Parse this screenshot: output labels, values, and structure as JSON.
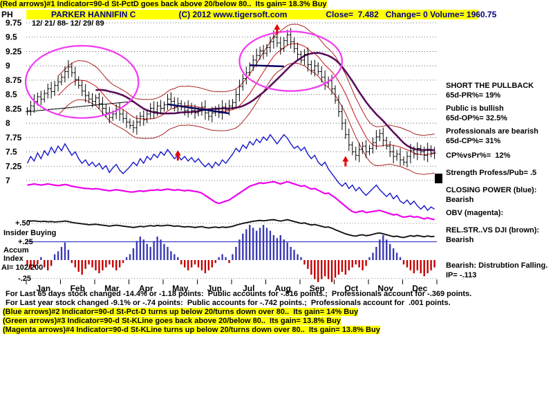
{
  "header": {
    "line1": "(Red arrows)#1 Indicator=90-d St-PctD goes back above 20/below 80..  Its gain= 18.3% Buy",
    "ticker": "PH",
    "title": "PARKER HANNIFIN C",
    "copyright": "(C) 2012 www.tigersoft.com",
    "quote": "Close=  7.482   Change= 0 Volume= 1960.75",
    "date_range": "12/ 21/ 88- 12/ 29/ 89"
  },
  "left_labels": {
    "plus50": "+.50",
    "insider_line1": "Insider Buying",
    "plus25": "+.25",
    "insider_line2": "Accum",
    "insider_line3": "Index",
    "ai": "AI= 102/200",
    "minus25": "-.25"
  },
  "right_panel": {
    "lines": [
      {
        "text": "SHORT THE PULLBACK",
        "bold": true,
        "mt": 0
      },
      {
        "text": "65d-PR%= 19%",
        "bold": false,
        "mt": 1
      },
      {
        "text": "Public is bullish",
        "bold": false,
        "mt": 6
      },
      {
        "text": "65d-OP%= 32.5%",
        "bold": false,
        "mt": 1
      },
      {
        "text": "Professionals are bearish",
        "bold": false,
        "mt": 6
      },
      {
        "text": "65d-CP%= 31%",
        "bold": false,
        "mt": 1
      },
      {
        "text": "CP%vsPr%=  12%",
        "bold": false,
        "mt": 8
      },
      {
        "text": "Strength Profess/Pub= .5",
        "bold": false,
        "mt": 12
      },
      {
        "text": "CLOSING POWER (blue):",
        "bold": true,
        "mt": 12
      },
      {
        "text": "Bearish",
        "bold": false,
        "mt": 1
      },
      {
        "text": "OBV (magenta):",
        "bold": true,
        "mt": 6
      },
      {
        "text": "REL.STR..VS DJI (brown):",
        "bold": true,
        "mt": 12
      },
      {
        "text": "Bearish",
        "bold": false,
        "mt": 1
      },
      {
        "text": "Bearish: Distrubtion Falling.",
        "bold": false,
        "mt": 24
      },
      {
        "text": "IP= -.113",
        "bold": false,
        "mt": 1
      }
    ]
  },
  "footer": {
    "lines": [
      {
        "text": "For Last 65 days stock changed -14.4% or -1.18 points:  Public accounts for -.816 points.;  Professionals account for -.369 points.",
        "highlight": false
      },
      {
        "text": "For Last year stock changed -9.1% or -.74 points:  Public accounts for -.742 points.;  Professionals account for  .001 points.",
        "highlight": false
      },
      {
        "text": "(Blue arrows)#2 Indicator=90-d St-Pct-D turns up below 20/turns down over 80..  Its gain= 14% Buy",
        "highlight": true
      },
      {
        "text": "(Green arrows)#3 Indicator=90-d St-KLine goes back above 20/below 80..  Its gain= 13.8% Buy",
        "highlight": true
      },
      {
        "text": "(Magenta arrows)#4 Indicator=90-d St-KLine turns up below 20/turns down over 80..  Its gain= 13.8% Buy",
        "highlight": true
      }
    ]
  },
  "chart_data": {
    "type": "candlestick",
    "symbol": "PH",
    "title": "PARKER HANNIFIN C",
    "period": "12/21/88 - 12/29/89",
    "ylim": [
      7,
      9.75
    ],
    "grid": true,
    "y_ticks": [
      "9.75",
      "9.5",
      "9.25",
      "9",
      "8.75",
      "8.5",
      "8.25",
      "8",
      "7.75",
      "7.5",
      "7.25",
      "7"
    ],
    "months": [
      "Jan",
      "Feb",
      "Mar",
      "Apr",
      "May",
      "Jun",
      "Jul",
      "Aug",
      "Sep",
      "Oct",
      "Nov",
      "Dec"
    ],
    "close": [
      8.22,
      8.3,
      8.38,
      8.46,
      8.42,
      8.52,
      8.6,
      8.55,
      8.66,
      8.72,
      8.8,
      8.9,
      8.98,
      8.88,
      8.76,
      8.66,
      8.56,
      8.48,
      8.42,
      8.38,
      8.44,
      8.34,
      8.26,
      8.18,
      8.1,
      8.16,
      8.24,
      8.16,
      8.08,
      8.02,
      7.96,
      7.92,
      8.02,
      8.12,
      8.06,
      8.16,
      8.26,
      8.2,
      8.3,
      8.26,
      8.32,
      8.42,
      8.38,
      8.28,
      8.34,
      8.28,
      8.22,
      8.28,
      8.22,
      8.18,
      8.22,
      8.28,
      8.18,
      8.12,
      8.18,
      8.24,
      8.18,
      8.28,
      8.24,
      8.3,
      8.36,
      8.5,
      8.64,
      8.78,
      8.88,
      9.0,
      9.1,
      9.18,
      9.26,
      9.22,
      9.32,
      9.42,
      9.5,
      9.4,
      9.3,
      9.44,
      9.54,
      9.42,
      9.3,
      9.2,
      9.1,
      9.2,
      9.02,
      8.92,
      9.0,
      8.9,
      8.8,
      8.7,
      8.74,
      8.6,
      8.4,
      8.2,
      8.0,
      7.8,
      7.62,
      7.5,
      7.44,
      7.54,
      7.6,
      7.5,
      7.56,
      7.66,
      7.76,
      7.82,
      7.7,
      7.6,
      7.5,
      7.42,
      7.46,
      7.36,
      7.32,
      7.42,
      7.52,
      7.46,
      7.56,
      7.5,
      7.44,
      7.54,
      7.48,
      7.48
    ],
    "closing_power": [
      7.3,
      7.42,
      7.34,
      7.48,
      7.38,
      7.52,
      7.44,
      7.58,
      7.48,
      7.6,
      7.52,
      7.64,
      7.54,
      7.44,
      7.5,
      7.38,
      7.3,
      7.36,
      7.26,
      7.32,
      7.24,
      7.3,
      7.2,
      7.26,
      7.14,
      7.22,
      7.28,
      7.18,
      7.12,
      7.18,
      7.24,
      7.32,
      7.26,
      7.38,
      7.3,
      7.42,
      7.36,
      7.46,
      7.4,
      7.5,
      7.44,
      7.54,
      7.46,
      7.38,
      7.44,
      7.36,
      7.42,
      7.34,
      7.4,
      7.32,
      7.38,
      7.3,
      7.24,
      7.3,
      7.22,
      7.32,
      7.26,
      7.36,
      7.3,
      7.38,
      7.46,
      7.56,
      7.5,
      7.62,
      7.56,
      7.68,
      7.62,
      7.72,
      7.66,
      7.76,
      7.7,
      7.8,
      7.72,
      7.64,
      7.72,
      7.8,
      7.74,
      7.64,
      7.56,
      7.6,
      7.52,
      7.58,
      7.46,
      7.38,
      7.44,
      7.32,
      7.26,
      7.32,
      7.2,
      7.12,
      7.04,
      6.96,
      6.9,
      6.96,
      6.86,
      6.92,
      6.82,
      6.88,
      6.8,
      6.74,
      6.8,
      6.86,
      6.92,
      6.84,
      6.78,
      6.72,
      6.78,
      6.68,
      6.74,
      6.64,
      6.6,
      6.66,
      6.58,
      6.64,
      6.56,
      6.5,
      6.56,
      6.48,
      6.54,
      6.5
    ],
    "obv": [
      6.92,
      6.93,
      6.94,
      6.93,
      6.92,
      6.93,
      6.94,
      6.93,
      6.92,
      6.91,
      6.92,
      6.93,
      6.92,
      6.9,
      6.89,
      6.88,
      6.87,
      6.86,
      6.86,
      6.85,
      6.86,
      6.85,
      6.84,
      6.83,
      6.82,
      6.83,
      6.84,
      6.83,
      6.82,
      6.81,
      6.8,
      6.8,
      6.81,
      6.82,
      6.81,
      6.82,
      6.83,
      6.83,
      6.84,
      6.83,
      6.84,
      6.85,
      6.84,
      6.83,
      6.84,
      6.83,
      6.82,
      6.83,
      6.82,
      6.81,
      6.8,
      6.78,
      6.74,
      6.7,
      6.66,
      6.62,
      6.6,
      6.62,
      6.64,
      6.66,
      6.7,
      6.74,
      6.78,
      6.82,
      6.86,
      6.9,
      6.92,
      6.94,
      6.96,
      6.95,
      6.96,
      6.97,
      6.98,
      6.96,
      6.94,
      6.96,
      6.98,
      6.96,
      6.94,
      6.92,
      6.9,
      6.91,
      6.88,
      6.85,
      6.86,
      6.83,
      6.8,
      6.77,
      6.78,
      6.74,
      6.7,
      6.65,
      6.6,
      6.55,
      6.5,
      6.46,
      6.44,
      6.46,
      6.47,
      6.44,
      6.45,
      6.46,
      6.47,
      6.48,
      6.46,
      6.44,
      6.42,
      6.4,
      6.41,
      6.38,
      6.36,
      6.37,
      6.38,
      6.36,
      6.37,
      6.35,
      6.33,
      6.35,
      6.33,
      6.32
    ],
    "rel_str": [
      0.88,
      0.86,
      0.87,
      0.85,
      0.84,
      0.85,
      0.83,
      0.84,
      0.82,
      0.83,
      0.84,
      0.86,
      0.84,
      0.8,
      0.78,
      0.76,
      0.74,
      0.72,
      0.7,
      0.71,
      0.72,
      0.7,
      0.68,
      0.66,
      0.64,
      0.66,
      0.68,
      0.66,
      0.64,
      0.62,
      0.6,
      0.58,
      0.6,
      0.63,
      0.61,
      0.64,
      0.66,
      0.64,
      0.67,
      0.65,
      0.66,
      0.68,
      0.66,
      0.63,
      0.65,
      0.62,
      0.6,
      0.62,
      0.6,
      0.58,
      0.6,
      0.62,
      0.58,
      0.56,
      0.58,
      0.6,
      0.57,
      0.6,
      0.58,
      0.6,
      0.63,
      0.68,
      0.72,
      0.76,
      0.79,
      0.82,
      0.85,
      0.87,
      0.89,
      0.87,
      0.89,
      0.91,
      0.92,
      0.89,
      0.86,
      0.89,
      0.92,
      0.88,
      0.84,
      0.8,
      0.76,
      0.78,
      0.73,
      0.69,
      0.71,
      0.67,
      0.63,
      0.59,
      0.6,
      0.55,
      0.48,
      0.42,
      0.36,
      0.3,
      0.26,
      0.22,
      0.2,
      0.24,
      0.26,
      0.22,
      0.24,
      0.28,
      0.32,
      0.34,
      0.3,
      0.26,
      0.22,
      0.18,
      0.2,
      0.16,
      0.14,
      0.18,
      0.22,
      0.19,
      0.23,
      0.2,
      0.17,
      0.21,
      0.18,
      0.19
    ],
    "insider": [
      -0.08,
      -0.12,
      -0.1,
      -0.06,
      0.04,
      -0.1,
      -0.14,
      -0.08,
      0.08,
      0.12,
      0.18,
      0.24,
      0.14,
      -0.04,
      -0.1,
      -0.16,
      -0.2,
      -0.12,
      -0.06,
      -0.1,
      -0.14,
      -0.18,
      -0.14,
      -0.1,
      -0.06,
      -0.1,
      -0.14,
      -0.1,
      -0.04,
      0.04,
      0.08,
      0.16,
      0.26,
      0.32,
      0.28,
      0.22,
      0.18,
      0.26,
      0.32,
      0.28,
      0.22,
      0.18,
      0.12,
      0.08,
      0.04,
      -0.06,
      -0.1,
      -0.14,
      -0.1,
      -0.06,
      -0.1,
      -0.14,
      -0.18,
      -0.14,
      -0.1,
      -0.04,
      0.04,
      0.08,
      0.04,
      -0.04,
      0.08,
      0.18,
      0.28,
      0.36,
      0.42,
      0.48,
      0.44,
      0.4,
      0.44,
      0.48,
      0.44,
      0.4,
      0.34,
      0.3,
      0.34,
      0.28,
      0.24,
      0.18,
      0.14,
      0.08,
      0.04,
      -0.06,
      -0.12,
      -0.2,
      -0.26,
      -0.3,
      -0.26,
      -0.22,
      -0.26,
      -0.3,
      -0.24,
      -0.2,
      -0.16,
      -0.2,
      -0.14,
      -0.1,
      -0.06,
      -0.1,
      -0.14,
      -0.08,
      0.04,
      0.1,
      0.18,
      0.28,
      0.34,
      0.28,
      0.22,
      0.16,
      0.1,
      0.04,
      -0.06,
      -0.1,
      -0.14,
      -0.18,
      -0.14,
      -0.18,
      -0.22,
      -0.18,
      -0.14,
      -0.1
    ],
    "arrows_red_up": [
      {
        "i": 44,
        "p": 7.42
      },
      {
        "i": 73,
        "p": 9.62
      },
      {
        "i": 93,
        "p": 7.32
      }
    ],
    "ellipses": [
      {
        "cx_i": 16,
        "cy_p": 8.72,
        "rx_i": 16.5,
        "ry_p": 0.63
      },
      {
        "cx_i": 77,
        "cy_p": 9.08,
        "rx_i": 15.0,
        "ry_p": 0.52
      }
    ],
    "trendlines": [
      {
        "i1": 0,
        "p1": 8.2,
        "i2": 31,
        "p2": 8.38,
        "color": "#000000",
        "w": 1
      },
      {
        "i1": 41,
        "p1": 8.33,
        "i2": 59,
        "p2": 8.17,
        "color": "#000060",
        "w": 2.4
      },
      {
        "i1": 65,
        "p1": 9.01,
        "i2": 75,
        "p2": 8.99,
        "color": "#000060",
        "w": 2.4
      }
    ],
    "colors": {
      "bars": "#000000",
      "ma_fast": "#cc2222",
      "band": "#aa2222",
      "ma_slow": "#5a0d5a",
      "closing_power": "#1414cc",
      "obv": "#ee00ee",
      "rel_str": "#111111",
      "hist_pos": "#3a3ab4",
      "hist_neg": "#c40000",
      "ellipse": "#f23cf2",
      "arrow": "#e80000",
      "ref_line": "#3c3ccc",
      "highlight": "#ffff00",
      "title": "#000080"
    }
  }
}
